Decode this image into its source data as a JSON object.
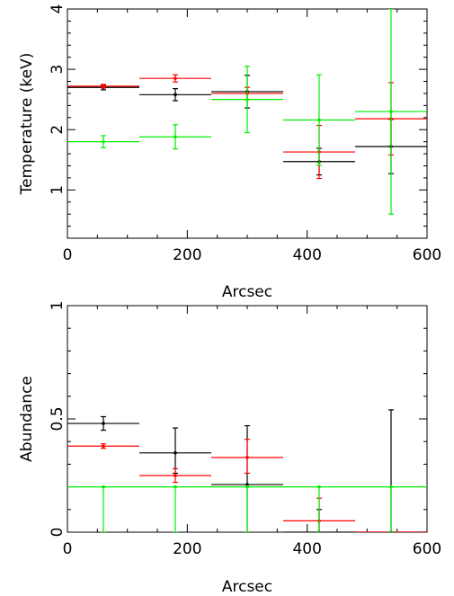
{
  "chart_data": [
    {
      "type": "scatter",
      "title": "",
      "xlabel": "Arcsec",
      "ylabel": "Temperature (keV)",
      "xlim": [
        0,
        600
      ],
      "ylim": [
        0.2,
        4
      ],
      "xticks": [
        "0",
        "200",
        "400",
        "600"
      ],
      "yticks": [
        "1",
        "2",
        "3",
        "4"
      ],
      "grid": false,
      "series": [
        {
          "color": "#000000",
          "x": [
            60,
            180,
            300,
            420,
            540
          ],
          "xerr": [
            60,
            60,
            60,
            60,
            60
          ],
          "y": [
            2.7,
            2.58,
            2.63,
            1.47,
            1.72
          ],
          "yerr": [
            0.04,
            0.1,
            0.27,
            0.22,
            0.45
          ]
        },
        {
          "color": "#ff0000",
          "x": [
            60,
            180,
            300,
            420,
            540
          ],
          "xerr": [
            60,
            60,
            60,
            60,
            60
          ],
          "y": [
            2.72,
            2.85,
            2.6,
            1.63,
            2.18
          ],
          "yerr": [
            0.03,
            0.06,
            0.1,
            0.44,
            0.6
          ]
        },
        {
          "color": "#00ee00",
          "x": [
            60,
            180,
            300,
            420,
            540
          ],
          "xerr": [
            60,
            60,
            60,
            60,
            60
          ],
          "y": [
            1.8,
            1.88,
            2.5,
            2.16,
            2.3
          ],
          "yerr": [
            0.1,
            0.2,
            0.55,
            0.75,
            1.7
          ]
        }
      ]
    },
    {
      "type": "scatter",
      "title": "",
      "xlabel": "Arcsec",
      "ylabel": "Abundance",
      "xlim": [
        0,
        600
      ],
      "ylim": [
        0,
        1
      ],
      "xticks": [
        "0",
        "200",
        "400",
        "600"
      ],
      "yticks": [
        "0",
        "0.5",
        "1"
      ],
      "grid": false,
      "series": [
        {
          "color": "#000000",
          "x": [
            60,
            180,
            300,
            420,
            540
          ],
          "xerr": [
            60,
            60,
            60,
            60,
            60
          ],
          "y": [
            0.48,
            0.35,
            0.21,
            0.0,
            0.0
          ],
          "yerr_low": [
            0.03,
            0.09,
            0.21,
            0.0,
            0.0
          ],
          "yerr_high": [
            0.03,
            0.11,
            0.26,
            0.1,
            0.54
          ]
        },
        {
          "color": "#ff0000",
          "x": [
            60,
            180,
            300,
            420,
            540
          ],
          "xerr": [
            60,
            60,
            60,
            60,
            60
          ],
          "y": [
            0.38,
            0.25,
            0.33,
            0.05,
            0.0
          ],
          "yerr_low": [
            0.01,
            0.03,
            0.07,
            0.05,
            0.0
          ],
          "yerr_high": [
            0.01,
            0.03,
            0.08,
            0.1,
            0.0
          ]
        },
        {
          "color": "#00ee00",
          "x": [
            60,
            180,
            300,
            420,
            540
          ],
          "xerr": [
            60,
            60,
            60,
            60,
            60
          ],
          "y": [
            0.2,
            0.2,
            0.2,
            0.2,
            0.2
          ],
          "yerr_low": [
            0.2,
            0.2,
            0.2,
            0.2,
            0.2
          ],
          "yerr_high": [
            0.0,
            0.0,
            0.0,
            0.0,
            0.0
          ]
        }
      ]
    }
  ]
}
